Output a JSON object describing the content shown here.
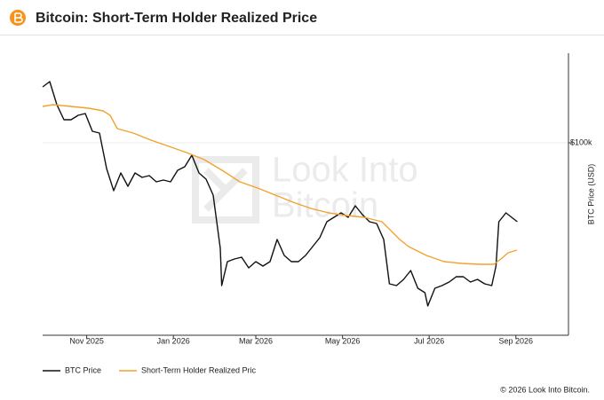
{
  "chart_data": {
    "type": "line",
    "title": "Bitcoin: Short-Term Holder Realized Price",
    "y_label": "BTC Price (USD)",
    "watermark": [
      "Look Into",
      "Bitcoin"
    ],
    "footer": "© 2026 Look Into Bitcoin.",
    "xlim": [
      0,
      370
    ],
    "xticks": [
      {
        "value": 31,
        "label": "Nov 2025"
      },
      {
        "value": 92,
        "label": "Jan 2026"
      },
      {
        "value": 150,
        "label": "Mar 2026"
      },
      {
        "value": 211,
        "label": "May 2026"
      },
      {
        "value": 272,
        "label": "Jul 2026"
      },
      {
        "value": 333,
        "label": "Sep 2026"
      }
    ],
    "ylim": [
      56600,
      120200
    ],
    "yticks": [
      {
        "value": 100000,
        "label": "$100k"
      }
    ],
    "grid": true,
    "legend": "bottom-left",
    "series": [
      {
        "name": "BTC Price",
        "color": "#111111",
        "x": [
          0,
          5,
          10,
          15,
          20,
          25,
          30,
          35,
          40,
          45,
          50,
          55,
          60,
          65,
          70,
          75,
          80,
          85,
          90,
          95,
          100,
          105,
          110,
          115,
          120,
          125,
          126,
          130,
          135,
          140,
          145,
          150,
          155,
          160,
          165,
          170,
          175,
          180,
          185,
          190,
          195,
          200,
          205,
          210,
          215,
          220,
          225,
          230,
          235,
          240,
          244,
          249,
          254,
          259,
          264,
          269,
          271,
          276,
          281,
          286,
          291,
          296,
          301,
          306,
          311,
          316,
          319,
          321,
          326,
          330,
          334
        ],
        "values": [
          112600,
          113800,
          108600,
          105200,
          105200,
          106200,
          106600,
          102600,
          102200,
          94200,
          89200,
          93200,
          90200,
          93200,
          92200,
          92600,
          91200,
          91600,
          91200,
          93800,
          94600,
          97200,
          93200,
          91800,
          88200,
          76200,
          67800,
          73200,
          73800,
          74200,
          71800,
          73200,
          72200,
          73200,
          78200,
          74600,
          73200,
          73200,
          74600,
          76600,
          78600,
          82200,
          83200,
          84200,
          83200,
          85800,
          83800,
          82200,
          81800,
          78200,
          68200,
          67800,
          69200,
          71200,
          67200,
          66200,
          63200,
          67200,
          67800,
          68600,
          69800,
          69800,
          68600,
          69200,
          68200,
          67800,
          72200,
          82200,
          84200,
          83200,
          82200
        ]
      },
      {
        "name": "Short-Term Holder Realized Pric",
        "color": "#f2a22c",
        "x": [
          0,
          7.5,
          20,
          32.5,
          42.5,
          47.5,
          52.5,
          63.75,
          76.25,
          88.75,
          101.25,
          113.75,
          126.25,
          138.75,
          151.25,
          163.75,
          176.25,
          188.75,
          201.25,
          213.75,
          226.25,
          238.75,
          245,
          251.25,
          257.5,
          270,
          282.5,
          295,
          307.5,
          317.5,
          322.5,
          327.5,
          333.75
        ],
        "values": [
          108200,
          108600,
          108200,
          107800,
          107200,
          106200,
          103200,
          102200,
          100600,
          99200,
          97800,
          96200,
          93800,
          91200,
          89800,
          88200,
          86600,
          85200,
          84200,
          83600,
          83200,
          82200,
          80200,
          78200,
          76600,
          74600,
          73200,
          72800,
          72600,
          72600,
          73800,
          75200,
          75800
        ]
      }
    ]
  }
}
